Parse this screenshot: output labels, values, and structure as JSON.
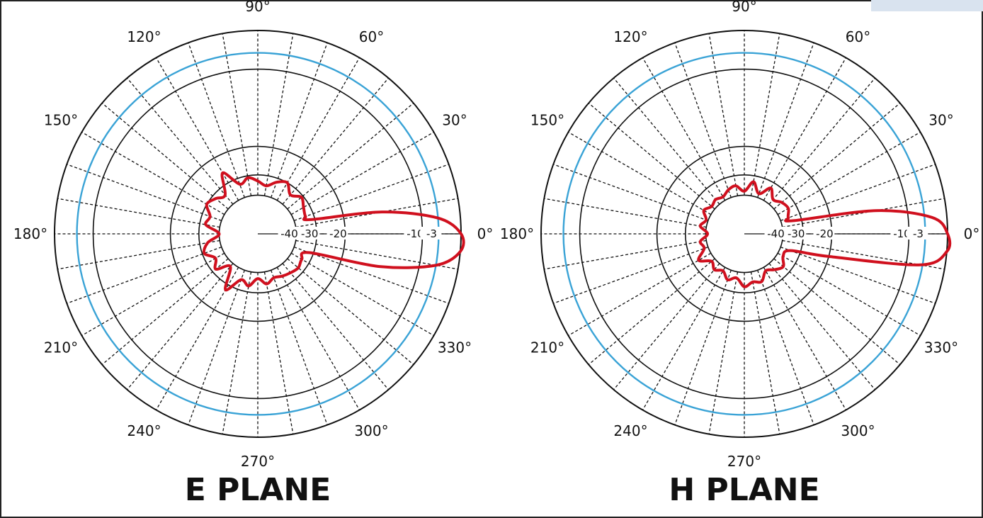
{
  "chart_data": [
    {
      "type": "polar",
      "title": "E PLANE",
      "angle_ticks": [
        "0°",
        "30°",
        "60°",
        "90°",
        "120°",
        "150°",
        "180°",
        "210°",
        "240°",
        "270°",
        "300°",
        "330°"
      ],
      "radial_ticks": [
        "-40",
        "-30",
        "-20",
        "-10",
        "-3"
      ],
      "radial_values_db": [
        -40,
        -30,
        -20,
        -10,
        -3
      ],
      "rlim_db": [
        -50,
        0
      ],
      "reference_circle_db": -3,
      "grid_dashed_every_deg": 10,
      "series": [
        {
          "color": "#d0101e",
          "angles_deg": [
            0,
            5,
            10,
            15,
            20,
            30,
            40,
            50,
            60,
            70,
            80,
            90,
            100,
            110,
            120,
            130,
            140,
            150,
            160,
            170,
            180,
            190,
            200,
            210,
            220,
            230,
            240,
            250,
            260,
            270,
            280,
            290,
            300,
            310,
            320,
            330,
            340,
            345,
            350,
            355
          ],
          "values_db": [
            0,
            -3,
            -15,
            -32,
            -34,
            -33,
            -31,
            -34,
            -30,
            -32,
            -35,
            -33,
            -31,
            -33,
            -26,
            -34,
            -32,
            -30,
            -34,
            -33,
            -40,
            -34,
            -31,
            -35,
            -32,
            -38,
            -28,
            -35,
            -33,
            -37,
            -34,
            -36,
            -35,
            -34,
            -33,
            -34,
            -32,
            -15,
            -3,
            0
          ]
        }
      ]
    },
    {
      "type": "polar",
      "title": "H PLANE",
      "angle_ticks": [
        "0°",
        "30°",
        "60°",
        "90°",
        "120°",
        "150°",
        "180°",
        "210°",
        "240°",
        "270°",
        "300°",
        "330°"
      ],
      "radial_ticks": [
        "-40",
        "-30",
        "-20",
        "-10",
        "-3"
      ],
      "radial_values_db": [
        -40,
        -30,
        -20,
        -10,
        -3
      ],
      "rlim_db": [
        -50,
        0
      ],
      "reference_circle_db": -3,
      "grid_dashed_every_deg": 10,
      "series": [
        {
          "color": "#d0101e",
          "angles_deg": [
            0,
            5,
            10,
            15,
            20,
            30,
            40,
            50,
            60,
            70,
            80,
            90,
            100,
            110,
            120,
            130,
            140,
            150,
            160,
            170,
            180,
            190,
            200,
            210,
            220,
            230,
            240,
            250,
            260,
            270,
            280,
            290,
            300,
            310,
            320,
            330,
            340,
            345,
            350,
            355
          ],
          "values_db": [
            0,
            -2,
            -14,
            -34,
            -36,
            -34,
            -35,
            -37,
            -33,
            -38,
            -33,
            -38,
            -35,
            -36,
            -38,
            -37,
            -38,
            -36,
            -39,
            -37,
            -41,
            -37,
            -38,
            -33,
            -38,
            -36,
            -38,
            -35,
            -37,
            -33,
            -35,
            -34,
            -38,
            -36,
            -34,
            -37,
            -35,
            -20,
            -4,
            0
          ]
        }
      ]
    }
  ]
}
